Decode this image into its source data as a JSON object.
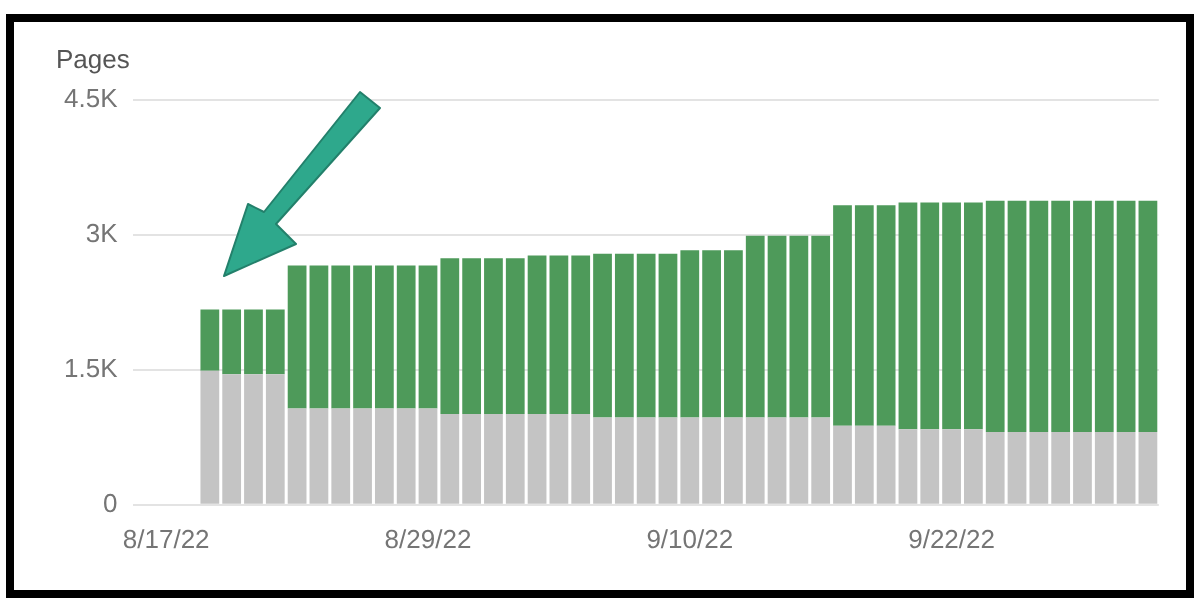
{
  "chart_data": {
    "type": "bar",
    "stacked": true,
    "ylabel": "Pages",
    "categories": [
      null,
      "8/17/22",
      null,
      null,
      null,
      null,
      null,
      null,
      null,
      null,
      null,
      null,
      null,
      "8/29/22",
      null,
      null,
      null,
      null,
      null,
      null,
      null,
      null,
      null,
      null,
      null,
      "9/10/22",
      null,
      null,
      null,
      null,
      null,
      null,
      null,
      null,
      null,
      null,
      null,
      "9/22/22",
      null,
      null,
      null,
      null,
      null,
      null,
      null,
      null,
      null
    ],
    "series": [
      {
        "color": "#c4c4c4",
        "values": [
          null,
          null,
          null,
          1490,
          1450,
          1450,
          1450,
          1070,
          1070,
          1070,
          1070,
          1070,
          1070,
          1070,
          1010,
          1010,
          1010,
          1010,
          1010,
          1010,
          1010,
          970,
          970,
          970,
          970,
          970,
          970,
          970,
          970,
          970,
          970,
          970,
          880,
          880,
          880,
          840,
          840,
          840,
          840,
          810,
          810,
          810,
          810,
          810,
          810,
          810,
          810
        ]
      },
      {
        "color": "#4e9a5a",
        "values": [
          null,
          null,
          null,
          680,
          720,
          720,
          720,
          1590,
          1590,
          1590,
          1590,
          1590,
          1590,
          1590,
          1730,
          1730,
          1730,
          1730,
          1760,
          1760,
          1760,
          1820,
          1820,
          1820,
          1820,
          1860,
          1860,
          1860,
          2020,
          2020,
          2020,
          2020,
          2450,
          2450,
          2450,
          2520,
          2520,
          2520,
          2520,
          2570,
          2570,
          2570,
          2570,
          2570,
          2570,
          2570,
          2570
        ]
      }
    ],
    "ylim": [
      0,
      4500
    ],
    "yticks": [
      0,
      {
        "value": 1500,
        "label": "1.5K"
      },
      {
        "value": 3000,
        "label": "3K"
      },
      {
        "value": 4500,
        "label": "4.5K"
      }
    ],
    "grid": "y",
    "legend": false
  }
}
